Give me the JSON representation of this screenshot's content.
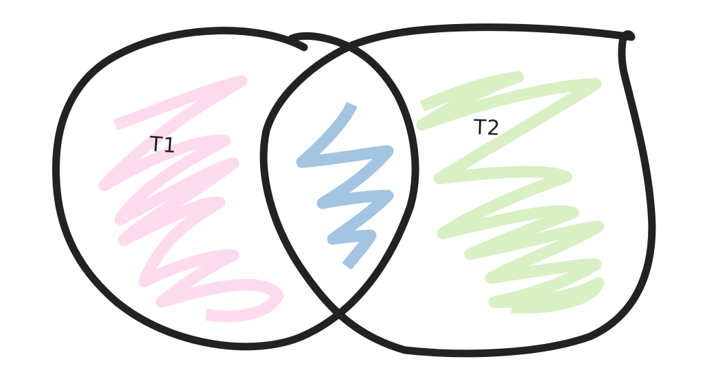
{
  "sets": [
    {
      "label": "T1",
      "fill_color": "#fddbee"
    },
    {
      "label": "T2",
      "fill_color": "#d8f0c4"
    }
  ],
  "intersection": {
    "fill_color": "#a3c5e1"
  },
  "outline_color": "#222222"
}
